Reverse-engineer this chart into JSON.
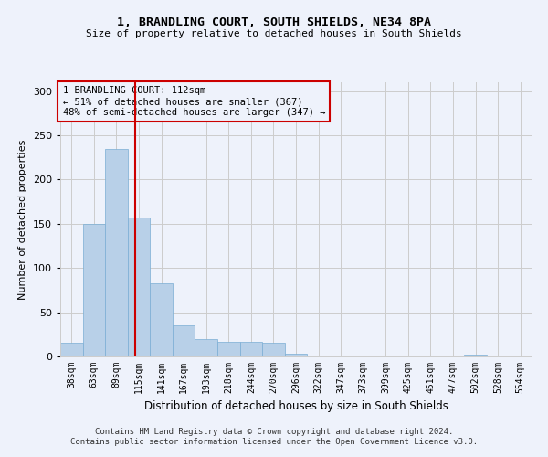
{
  "title": "1, BRANDLING COURT, SOUTH SHIELDS, NE34 8PA",
  "subtitle": "Size of property relative to detached houses in South Shields",
  "xlabel": "Distribution of detached houses by size in South Shields",
  "ylabel": "Number of detached properties",
  "footer_line1": "Contains HM Land Registry data © Crown copyright and database right 2024.",
  "footer_line2": "Contains public sector information licensed under the Open Government Licence v3.0.",
  "annotation_title": "1 BRANDLING COURT: 112sqm",
  "annotation_line2": "← 51% of detached houses are smaller (367)",
  "annotation_line3": "48% of semi-detached houses are larger (347) →",
  "bar_color": "#b8d0e8",
  "bar_edge_color": "#7aadd4",
  "vline_color": "#cc0000",
  "vline_position": 2.85,
  "grid_color": "#cccccc",
  "background_color": "#eef2fb",
  "categories": [
    "38sqm",
    "63sqm",
    "89sqm",
    "115sqm",
    "141sqm",
    "167sqm",
    "193sqm",
    "218sqm",
    "244sqm",
    "270sqm",
    "296sqm",
    "322sqm",
    "347sqm",
    "373sqm",
    "399sqm",
    "425sqm",
    "451sqm",
    "477sqm",
    "502sqm",
    "528sqm",
    "554sqm"
  ],
  "values": [
    15,
    150,
    235,
    157,
    83,
    35,
    20,
    17,
    17,
    15,
    3,
    1,
    1,
    0,
    0,
    0,
    0,
    0,
    2,
    0,
    1
  ],
  "ylim": [
    0,
    310
  ],
  "yticks": [
    0,
    50,
    100,
    150,
    200,
    250,
    300
  ]
}
